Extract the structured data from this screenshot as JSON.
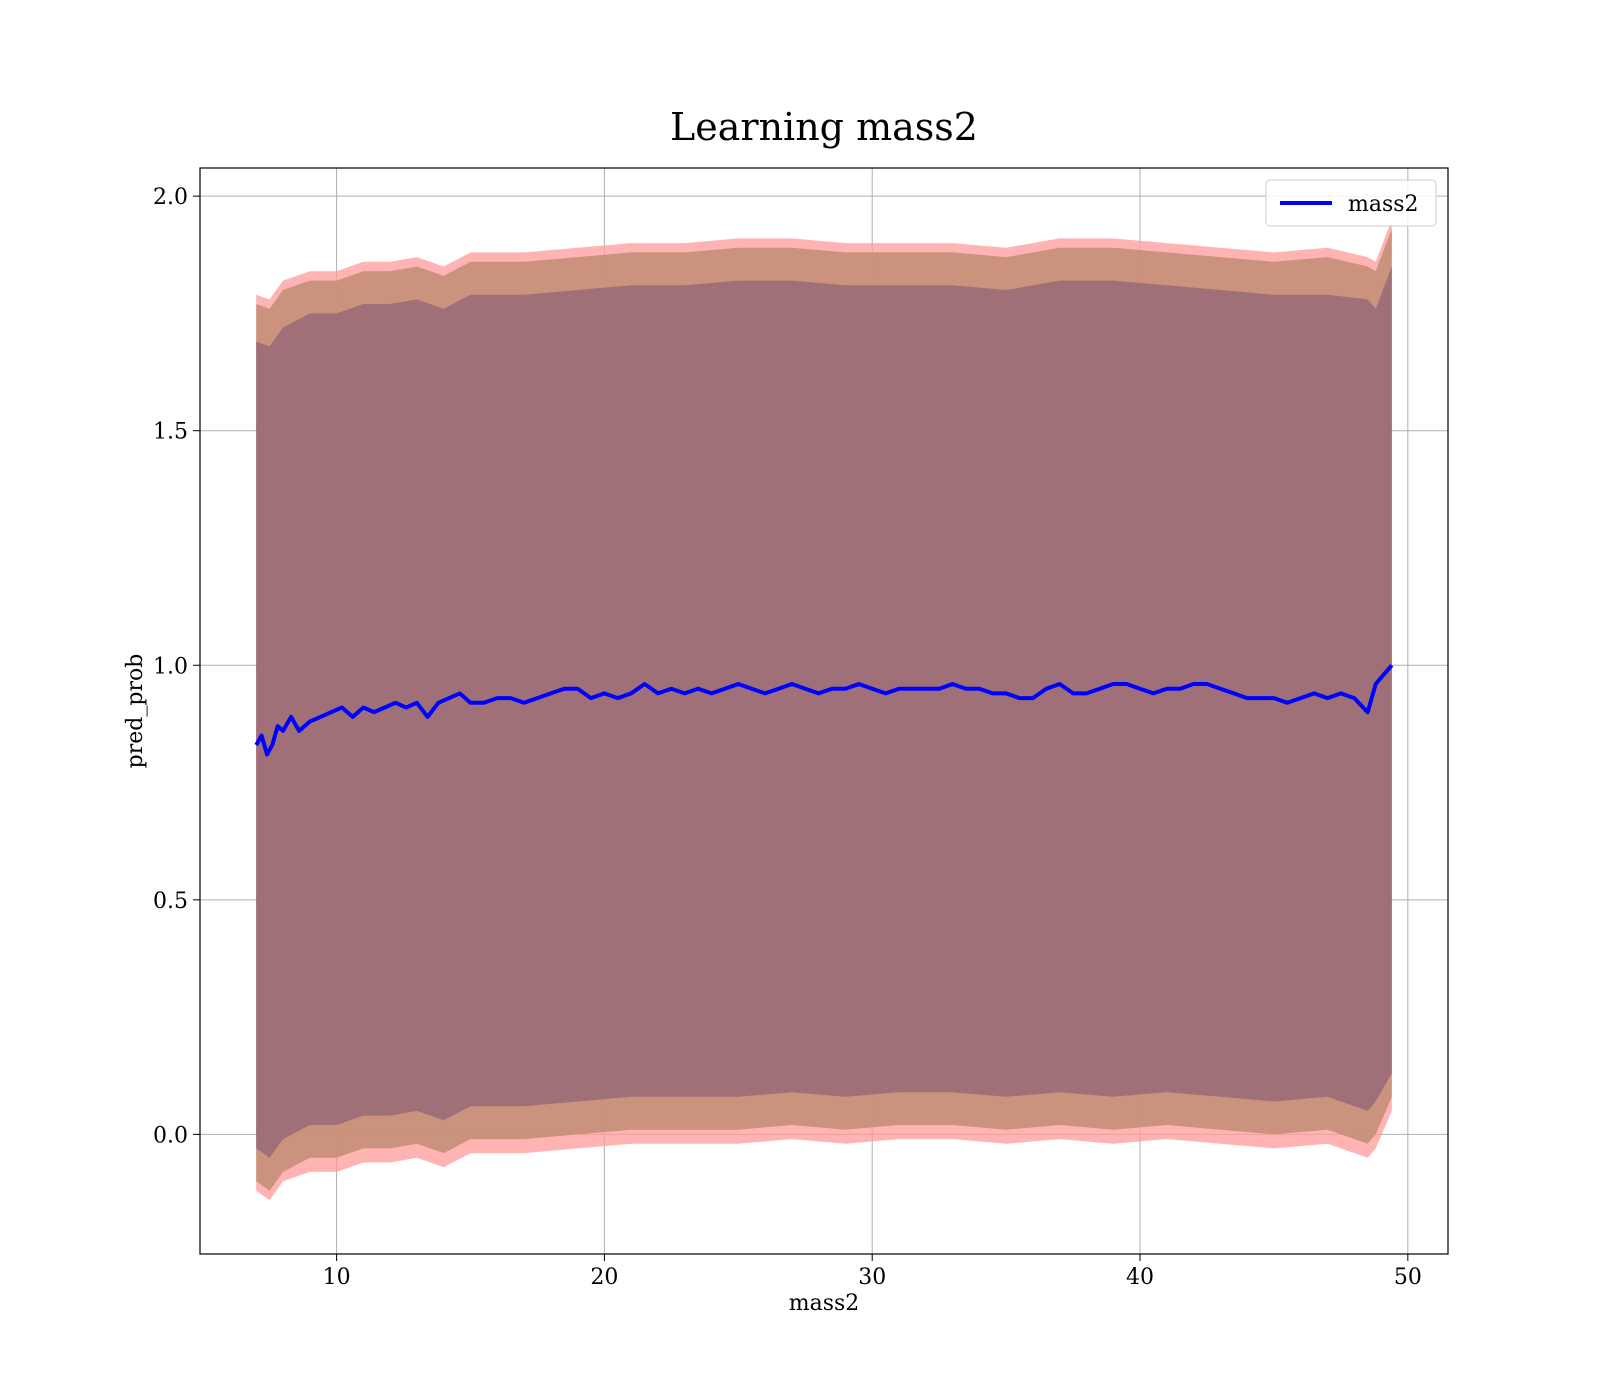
{
  "chart_data": {
    "type": "line",
    "title": "Learning mass2",
    "xlabel": "mass2",
    "ylabel": "pred_prob",
    "xlim": [
      4.9,
      51.5
    ],
    "ylim": [
      -0.255,
      2.06
    ],
    "xticks": [
      10,
      20,
      30,
      40,
      50
    ],
    "xtick_labels": [
      "10",
      "20",
      "30",
      "40",
      "50"
    ],
    "yticks": [
      0.0,
      0.5,
      1.0,
      1.5,
      2.0
    ],
    "ytick_labels": [
      "0.0",
      "0.5",
      "1.0",
      "1.5",
      "2.0"
    ],
    "grid": true,
    "legend": {
      "position": "top-right",
      "entries": [
        "mass2"
      ]
    },
    "colors": {
      "line": "#0000ff",
      "outer_band": "#ff9999",
      "middle_band": "#c8917a",
      "inner_band": "#a07078",
      "grid": "#b0b0b0"
    },
    "series": [
      {
        "name": "mass2",
        "x": [
          7.0,
          7.2,
          7.4,
          7.6,
          7.8,
          8.0,
          8.3,
          8.6,
          9.0,
          9.4,
          9.8,
          10.2,
          10.6,
          11.0,
          11.4,
          11.8,
          12.2,
          12.6,
          13.0,
          13.4,
          13.8,
          14.2,
          14.6,
          15.0,
          15.5,
          16.0,
          16.5,
          17.0,
          17.5,
          18.0,
          18.5,
          19.0,
          19.5,
          20.0,
          20.5,
          21.0,
          21.5,
          22.0,
          22.5,
          23.0,
          23.5,
          24.0,
          24.5,
          25.0,
          25.5,
          26.0,
          26.5,
          27.0,
          27.5,
          28.0,
          28.5,
          29.0,
          29.5,
          30.0,
          30.5,
          31.0,
          31.5,
          32.0,
          32.5,
          33.0,
          33.5,
          34.0,
          34.5,
          35.0,
          35.5,
          36.0,
          36.5,
          37.0,
          37.5,
          38.0,
          38.5,
          39.0,
          39.5,
          40.0,
          40.5,
          41.0,
          41.5,
          42.0,
          42.5,
          43.0,
          43.5,
          44.0,
          44.5,
          45.0,
          45.5,
          46.0,
          46.5,
          47.0,
          47.5,
          48.0,
          48.5,
          48.8,
          49.1,
          49.4
        ],
        "y": [
          0.83,
          0.85,
          0.81,
          0.83,
          0.87,
          0.86,
          0.89,
          0.86,
          0.88,
          0.89,
          0.9,
          0.91,
          0.89,
          0.91,
          0.9,
          0.91,
          0.92,
          0.91,
          0.92,
          0.89,
          0.92,
          0.93,
          0.94,
          0.92,
          0.92,
          0.93,
          0.93,
          0.92,
          0.93,
          0.94,
          0.95,
          0.95,
          0.93,
          0.94,
          0.93,
          0.94,
          0.96,
          0.94,
          0.95,
          0.94,
          0.95,
          0.94,
          0.95,
          0.96,
          0.95,
          0.94,
          0.95,
          0.96,
          0.95,
          0.94,
          0.95,
          0.95,
          0.96,
          0.95,
          0.94,
          0.95,
          0.95,
          0.95,
          0.95,
          0.96,
          0.95,
          0.95,
          0.94,
          0.94,
          0.93,
          0.93,
          0.95,
          0.96,
          0.94,
          0.94,
          0.95,
          0.96,
          0.96,
          0.95,
          0.94,
          0.95,
          0.95,
          0.96,
          0.96,
          0.95,
          0.94,
          0.93,
          0.93,
          0.93,
          0.92,
          0.93,
          0.94,
          0.93,
          0.94,
          0.93,
          0.9,
          0.96,
          0.98,
          1.0
        ]
      }
    ],
    "bands": [
      {
        "label": "outer",
        "x": [
          7.0,
          7.5,
          8.0,
          9.0,
          10.0,
          11.0,
          12.0,
          13.0,
          14.0,
          15.0,
          17.0,
          19.0,
          21.0,
          23.0,
          25.0,
          27.0,
          29.0,
          31.0,
          33.0,
          35.0,
          37.0,
          39.0,
          41.0,
          43.0,
          45.0,
          47.0,
          48.5,
          48.8,
          49.4
        ],
        "upper": [
          1.79,
          1.78,
          1.82,
          1.84,
          1.84,
          1.86,
          1.86,
          1.87,
          1.85,
          1.88,
          1.88,
          1.89,
          1.9,
          1.9,
          1.91,
          1.91,
          1.9,
          1.9,
          1.9,
          1.89,
          1.91,
          1.91,
          1.9,
          1.89,
          1.88,
          1.89,
          1.87,
          1.86,
          1.95
        ],
        "lower": [
          -0.12,
          -0.14,
          -0.1,
          -0.08,
          -0.08,
          -0.06,
          -0.06,
          -0.05,
          -0.07,
          -0.04,
          -0.04,
          -0.03,
          -0.02,
          -0.02,
          -0.02,
          -0.01,
          -0.02,
          -0.01,
          -0.01,
          -0.02,
          -0.01,
          -0.02,
          -0.01,
          -0.02,
          -0.03,
          -0.02,
          -0.05,
          -0.03,
          0.05
        ]
      },
      {
        "label": "middle",
        "x": [
          7.0,
          7.5,
          8.0,
          9.0,
          10.0,
          11.0,
          12.0,
          13.0,
          14.0,
          15.0,
          17.0,
          19.0,
          21.0,
          23.0,
          25.0,
          27.0,
          29.0,
          31.0,
          33.0,
          35.0,
          37.0,
          39.0,
          41.0,
          43.0,
          45.0,
          47.0,
          48.5,
          48.8,
          49.4
        ],
        "upper": [
          1.77,
          1.76,
          1.8,
          1.82,
          1.82,
          1.84,
          1.84,
          1.85,
          1.83,
          1.86,
          1.86,
          1.87,
          1.88,
          1.88,
          1.89,
          1.89,
          1.88,
          1.88,
          1.88,
          1.87,
          1.89,
          1.89,
          1.88,
          1.87,
          1.86,
          1.87,
          1.85,
          1.84,
          1.93
        ],
        "lower": [
          -0.1,
          -0.12,
          -0.08,
          -0.05,
          -0.05,
          -0.03,
          -0.03,
          -0.02,
          -0.04,
          -0.01,
          -0.01,
          0.0,
          0.01,
          0.01,
          0.01,
          0.02,
          0.01,
          0.02,
          0.02,
          0.01,
          0.02,
          0.01,
          0.02,
          0.01,
          0.0,
          0.01,
          -0.02,
          0.0,
          0.08
        ]
      },
      {
        "label": "inner",
        "x": [
          7.0,
          7.5,
          8.0,
          9.0,
          10.0,
          11.0,
          12.0,
          13.0,
          14.0,
          15.0,
          17.0,
          19.0,
          21.0,
          23.0,
          25.0,
          27.0,
          29.0,
          31.0,
          33.0,
          35.0,
          37.0,
          39.0,
          41.0,
          43.0,
          45.0,
          47.0,
          48.5,
          48.8,
          49.4
        ],
        "upper": [
          1.69,
          1.68,
          1.72,
          1.75,
          1.75,
          1.77,
          1.77,
          1.78,
          1.76,
          1.79,
          1.79,
          1.8,
          1.81,
          1.81,
          1.82,
          1.82,
          1.81,
          1.81,
          1.81,
          1.8,
          1.82,
          1.82,
          1.81,
          1.8,
          1.79,
          1.79,
          1.78,
          1.76,
          1.85
        ],
        "lower": [
          -0.03,
          -0.05,
          -0.01,
          0.02,
          0.02,
          0.04,
          0.04,
          0.05,
          0.03,
          0.06,
          0.06,
          0.07,
          0.08,
          0.08,
          0.08,
          0.09,
          0.08,
          0.09,
          0.09,
          0.08,
          0.09,
          0.08,
          0.09,
          0.08,
          0.07,
          0.08,
          0.05,
          0.07,
          0.13
        ]
      }
    ]
  }
}
